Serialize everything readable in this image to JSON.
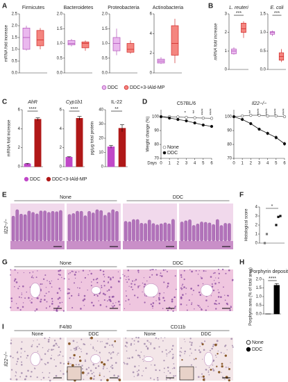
{
  "figure": {
    "panels": [
      "A",
      "B",
      "C",
      "D",
      "E",
      "F",
      "G",
      "H",
      "I"
    ],
    "legend_A": [
      {
        "name": "DDC",
        "color": "#eab8ee",
        "edgecolor": "#b050b8"
      },
      {
        "name": "DDC+3-IAld-MP",
        "color": "#f4857f",
        "edgecolor": "#d02828"
      }
    ],
    "legend_C": [
      {
        "name": "DDC",
        "color": "#c048c8",
        "edgecolor": "#c048c8"
      },
      {
        "name": "DDC+3-IAld-MP",
        "color": "#b01818",
        "edgecolor": "#b01818"
      }
    ],
    "legend_H": [
      {
        "name": "None",
        "color": "#ffffff",
        "edgecolor": "#000000"
      },
      {
        "name": "DDC",
        "color": "#000000",
        "edgecolor": "#000000"
      }
    ],
    "E": {
      "groups": [
        "None",
        "DDC"
      ],
      "row_label": "Il22−/−"
    },
    "G": {
      "groups": [
        "None",
        "DDC"
      ]
    },
    "I": {
      "markers": [
        "F4/80",
        "CD11b"
      ],
      "groups": [
        "None",
        "DDC",
        "None",
        "DDC"
      ],
      "row_label": "Il22−/−"
    }
  },
  "chart_data": [
    {
      "type": "box",
      "title": "Firmicutes",
      "ylabel": "mRNA fold increase",
      "ylim": [
        0,
        2.5
      ],
      "yticks": [
        {
          "value": 0,
          "label": "0.0"
        },
        0.5,
        {
          "value": 1,
          "label": "1.0"
        },
        1.5,
        {
          "value": 2,
          "label": "2.0"
        },
        2.5
      ],
      "series": [
        {
          "color": "#eab8ee",
          "edgecolor": "#b050b8",
          "values": [
            0.95,
            1.0,
            1.5,
            1.9,
            2.0
          ]
        },
        {
          "color": "#f4857f",
          "edgecolor": "#d02828",
          "values": [
            1.0,
            1.15,
            1.4,
            1.8,
            1.9
          ]
        }
      ]
    },
    {
      "type": "box",
      "title": "Bacteroidetes",
      "ylim": [
        0,
        2
      ],
      "yticks": [
        {
          "value": 0,
          "label": "0.0"
        },
        0.5,
        {
          "value": 1,
          "label": "1.0"
        },
        1.5,
        {
          "value": 2,
          "label": "2.0"
        }
      ],
      "series": [
        {
          "color": "#eab8ee",
          "edgecolor": "#b050b8",
          "values": [
            0.9,
            0.95,
            1.0,
            1.1,
            1.15
          ]
        },
        {
          "color": "#f4857f",
          "edgecolor": "#d02828",
          "values": [
            0.75,
            0.85,
            1.0,
            1.05,
            1.1
          ]
        }
      ]
    },
    {
      "type": "box",
      "title": "Proteobacteria",
      "ylim": [
        0,
        2
      ],
      "yticks": [
        {
          "value": 0,
          "label": "0.0"
        },
        0.5,
        {
          "value": 1,
          "label": "1.0"
        },
        1.5,
        {
          "value": 2,
          "label": "2.0"
        }
      ],
      "series": [
        {
          "color": "#eab8ee",
          "edgecolor": "#b050b8",
          "values": [
            0.6,
            0.75,
            1.0,
            1.2,
            1.5
          ]
        },
        {
          "color": "#f4857f",
          "edgecolor": "#d02828",
          "values": [
            0.65,
            0.7,
            0.8,
            1.0,
            1.1
          ]
        }
      ]
    },
    {
      "type": "box",
      "title": "Actinobacteria",
      "ylim": [
        0,
        6
      ],
      "yticks": [
        0,
        2,
        4,
        6
      ],
      "series": [
        {
          "color": "#eab8ee",
          "edgecolor": "#b050b8",
          "values": [
            0.9,
            1.0,
            1.2,
            1.4,
            1.6
          ]
        },
        {
          "color": "#f4857f",
          "edgecolor": "#d02828",
          "values": [
            1.0,
            1.8,
            3.0,
            4.8,
            5.5
          ]
        }
      ]
    },
    {
      "type": "box",
      "title": "L. reuteri",
      "ylabel": "mRNA fold increase",
      "ylim": [
        0,
        3
      ],
      "yticks": [
        0,
        1,
        2,
        3
      ],
      "annotation": "***",
      "series": [
        {
          "color": "#eab8ee",
          "edgecolor": "#b050b8",
          "values": [
            0.8,
            0.85,
            1.0,
            1.1,
            1.2
          ]
        },
        {
          "color": "#f4857f",
          "edgecolor": "#d02828",
          "values": [
            1.7,
            2.0,
            2.2,
            2.5,
            2.6
          ]
        }
      ]
    },
    {
      "type": "box",
      "title": "E. coli",
      "ylim": [
        0,
        1.5
      ],
      "yticks": [
        {
          "value": 0,
          "label": "0.0"
        },
        0.5,
        {
          "value": 1,
          "label": "1.0"
        },
        1.5
      ],
      "annotation": "***",
      "series": [
        {
          "color": "#eab8ee",
          "edgecolor": "#b050b8",
          "values": [
            0.9,
            0.95,
            1.0,
            1.02,
            1.05
          ]
        },
        {
          "color": "#f4857f",
          "edgecolor": "#d02828",
          "values": [
            0.2,
            0.25,
            0.35,
            0.45,
            0.55
          ]
        }
      ]
    },
    {
      "type": "bar",
      "title": "AhR",
      "ylabel": "mRNA fold increase",
      "ylim": [
        0,
        6
      ],
      "yticks": [
        0,
        2,
        4,
        6
      ],
      "annotation": "****",
      "values": [
        0.3,
        5.0
      ],
      "errors": [
        0.05,
        0.15
      ],
      "colors": [
        "#c048c8",
        "#b01818"
      ]
    },
    {
      "type": "bar",
      "title": "Cyp1b1",
      "ylim": [
        0,
        6
      ],
      "yticks": [
        0,
        2,
        4,
        6
      ],
      "annotation": "****",
      "values": [
        1.0,
        5.1
      ],
      "errors": [
        0.05,
        0.2
      ],
      "colors": [
        "#c048c8",
        "#b01818"
      ]
    },
    {
      "type": "bar",
      "title": "IL-22",
      "ylabel": "pg/μg total protein",
      "ylim": [
        0,
        40
      ],
      "yticks": [
        0,
        10,
        20,
        30,
        40
      ],
      "annotation": "**",
      "values": [
        14,
        27
      ],
      "errors": [
        1,
        2.5
      ],
      "colors": [
        "#c048c8",
        "#b01818"
      ]
    },
    {
      "type": "line",
      "title": "C57BL/6",
      "xlabel": "Days",
      "ylabel": "Weight change (%)",
      "x": [
        0,
        1,
        2,
        3,
        4,
        5,
        6
      ],
      "xlim": [
        0,
        6
      ],
      "xticks": [
        0,
        1,
        2,
        3,
        4,
        5,
        6
      ],
      "ylim": [
        70,
        105
      ],
      "yticks": [
        70,
        80,
        90,
        100
      ],
      "series": [
        {
          "name": "None",
          "marker": "open",
          "color": "#555555",
          "values": [
            100,
            100,
            99.8,
            99.5,
            99.2,
            99,
            98.8
          ],
          "errors": [
            0.5,
            0.5,
            0.5,
            0.5,
            0.5,
            0.5,
            0.5
          ]
        },
        {
          "name": "DDC",
          "marker": "filled",
          "color": "#111111",
          "values": [
            100,
            99,
            98,
            97,
            95.5,
            94,
            93
          ],
          "errors": [
            0.3,
            0.5,
            0.6,
            0.8,
            0.8,
            1,
            1
          ]
        }
      ],
      "annotations": [
        {
          "x": 3,
          "label": "*"
        },
        {
          "x": 4,
          "label": "**"
        },
        {
          "x": 5,
          "label": "****"
        },
        {
          "x": 6,
          "label": "****"
        }
      ]
    },
    {
      "type": "line",
      "title": "Il22−/−",
      "x": [
        0,
        1,
        2,
        3,
        4,
        5,
        6
      ],
      "xlim": [
        0,
        6
      ],
      "xticks": [
        0,
        1,
        2,
        3,
        4,
        5,
        6
      ],
      "ylim": [
        70,
        105
      ],
      "yticks": [
        70,
        80,
        90,
        100
      ],
      "series": [
        {
          "marker": "open",
          "color": "#555555",
          "values": [
            100,
            100.5,
            101,
            101,
            100.5,
            100.5,
            100
          ],
          "errors": [
            0.5,
            0.5,
            0.5,
            0.5,
            0.5,
            0.5,
            0.5
          ]
        },
        {
          "marker": "filled",
          "color": "#111111",
          "values": [
            100,
            98,
            95,
            91,
            88,
            85,
            80.5
          ],
          "errors": [
            0.3,
            0.8,
            1,
            1,
            1.2,
            1.5,
            1.5
          ]
        }
      ],
      "annotations": [
        {
          "x": 2,
          "label": "**"
        },
        {
          "x": 3,
          "label": "****"
        },
        {
          "x": 4,
          "label": "****"
        },
        {
          "x": 5,
          "label": "****"
        },
        {
          "x": 6,
          "label": "****"
        }
      ]
    },
    {
      "type": "scatter",
      "ylabel": "Histological score",
      "ylim": [
        0,
        4
      ],
      "yticks": [
        0,
        1,
        2,
        3,
        4
      ],
      "annotation": "*",
      "series": [
        {
          "color": "#777777",
          "values": [
            0,
            1
          ]
        },
        {
          "color": "#111111",
          "values": [
            2,
            2.9,
            3
          ]
        }
      ]
    },
    {
      "type": "bar",
      "title": "Porphyrin deposition",
      "ylabel": "Porphyrin area (% of total area)",
      "ylim": [
        0,
        2
      ],
      "yticks": [
        {
          "value": 0,
          "label": "0.0"
        },
        0.5,
        {
          "value": 1,
          "label": "1.0"
        },
        1.5,
        {
          "value": 2,
          "label": "2.0"
        }
      ],
      "annotation": "****",
      "values": [
        0,
        1.65
      ],
      "errors": [
        0,
        0.1
      ],
      "colors": [
        "#ffffff",
        "#000000"
      ],
      "edgecolor": "#000000"
    }
  ]
}
